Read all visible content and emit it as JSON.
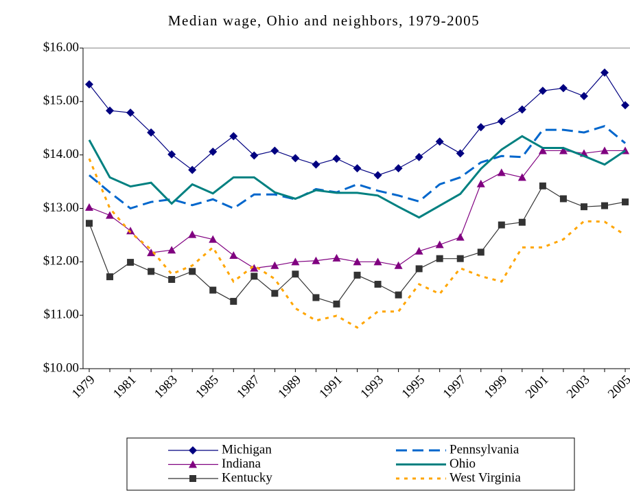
{
  "chart_data": {
    "type": "line",
    "title": "Median wage, Ohio and neighbors, 1979-2005",
    "categories": [
      "1979",
      null,
      "1981",
      null,
      "1983",
      null,
      "1985",
      null,
      "1987",
      null,
      "1989",
      null,
      "1991",
      null,
      "1993",
      null,
      "1995",
      null,
      "1997",
      null,
      "1999",
      null,
      "2001",
      null,
      "2003",
      null,
      "2005"
    ],
    "ylim": [
      10,
      16
    ],
    "yticks": [
      {
        "value": 10,
        "label": "$10.00"
      },
      {
        "value": 11,
        "label": "$11.00"
      },
      {
        "value": 12,
        "label": "$12.00"
      },
      {
        "value": 13,
        "label": "$13.00"
      },
      {
        "value": 14,
        "label": "$14.00"
      },
      {
        "value": 15,
        "label": "$15.00"
      },
      {
        "value": 16,
        "label": "$16.00"
      }
    ],
    "grid": false,
    "series": [
      {
        "name": "Michigan",
        "color": "#000080",
        "marker": "diamond",
        "dash": "solid",
        "values": [
          15.32,
          14.83,
          14.79,
          14.42,
          14.01,
          13.72,
          14.06,
          14.35,
          13.99,
          14.08,
          13.94,
          13.82,
          13.93,
          13.75,
          13.62,
          13.75,
          13.96,
          14.25,
          14.03,
          14.52,
          14.63,
          14.85,
          15.2,
          15.25,
          15.1,
          15.54,
          14.93
        ]
      },
      {
        "name": "Pennsylvania",
        "color": "#0066cc",
        "marker": "none",
        "dash": "dashed",
        "values": [
          13.62,
          13.3,
          13.0,
          13.12,
          13.17,
          13.06,
          13.17,
          13.0,
          13.26,
          13.26,
          13.17,
          13.36,
          13.3,
          13.45,
          13.33,
          13.24,
          13.13,
          13.45,
          13.58,
          13.86,
          13.98,
          13.96,
          14.47,
          14.47,
          14.42,
          14.54,
          14.22
        ]
      },
      {
        "name": "Indiana",
        "color": "#800080",
        "marker": "triangle",
        "dash": "solid",
        "values": [
          13.02,
          12.87,
          12.58,
          12.17,
          12.22,
          12.51,
          12.42,
          12.12,
          11.88,
          11.93,
          12.0,
          12.02,
          12.07,
          12.0,
          12.0,
          11.93,
          12.2,
          12.32,
          12.46,
          13.46,
          13.67,
          13.58,
          14.08,
          14.08,
          14.03,
          14.08,
          14.08
        ]
      },
      {
        "name": "Ohio",
        "color": "#008080",
        "marker": "none",
        "dash": "solid",
        "values": [
          14.28,
          13.58,
          13.41,
          13.48,
          13.09,
          13.45,
          13.28,
          13.58,
          13.58,
          13.3,
          13.18,
          13.34,
          13.29,
          13.29,
          13.24,
          13.03,
          12.83,
          13.05,
          13.27,
          13.74,
          14.1,
          14.35,
          14.13,
          14.13,
          13.98,
          13.82,
          14.08
        ]
      },
      {
        "name": "Kentucky",
        "color": "#333333",
        "marker": "square",
        "dash": "solid",
        "values": [
          12.72,
          11.72,
          11.99,
          11.82,
          11.67,
          11.82,
          11.47,
          11.26,
          11.73,
          11.41,
          11.77,
          11.33,
          11.21,
          11.75,
          11.58,
          11.38,
          11.87,
          12.06,
          12.06,
          12.18,
          12.69,
          12.74,
          13.42,
          13.18,
          13.03,
          13.05,
          13.12
        ]
      },
      {
        "name": "West Virginia",
        "color": "#ffa500",
        "marker": "none",
        "dash": "dotted",
        "values": [
          13.93,
          13.0,
          12.55,
          12.23,
          11.77,
          11.93,
          12.27,
          11.63,
          11.93,
          11.68,
          11.13,
          10.9,
          10.99,
          10.77,
          11.07,
          11.07,
          11.58,
          11.4,
          11.88,
          11.73,
          11.63,
          12.27,
          12.27,
          12.42,
          12.76,
          12.75,
          12.5
        ]
      }
    ]
  }
}
